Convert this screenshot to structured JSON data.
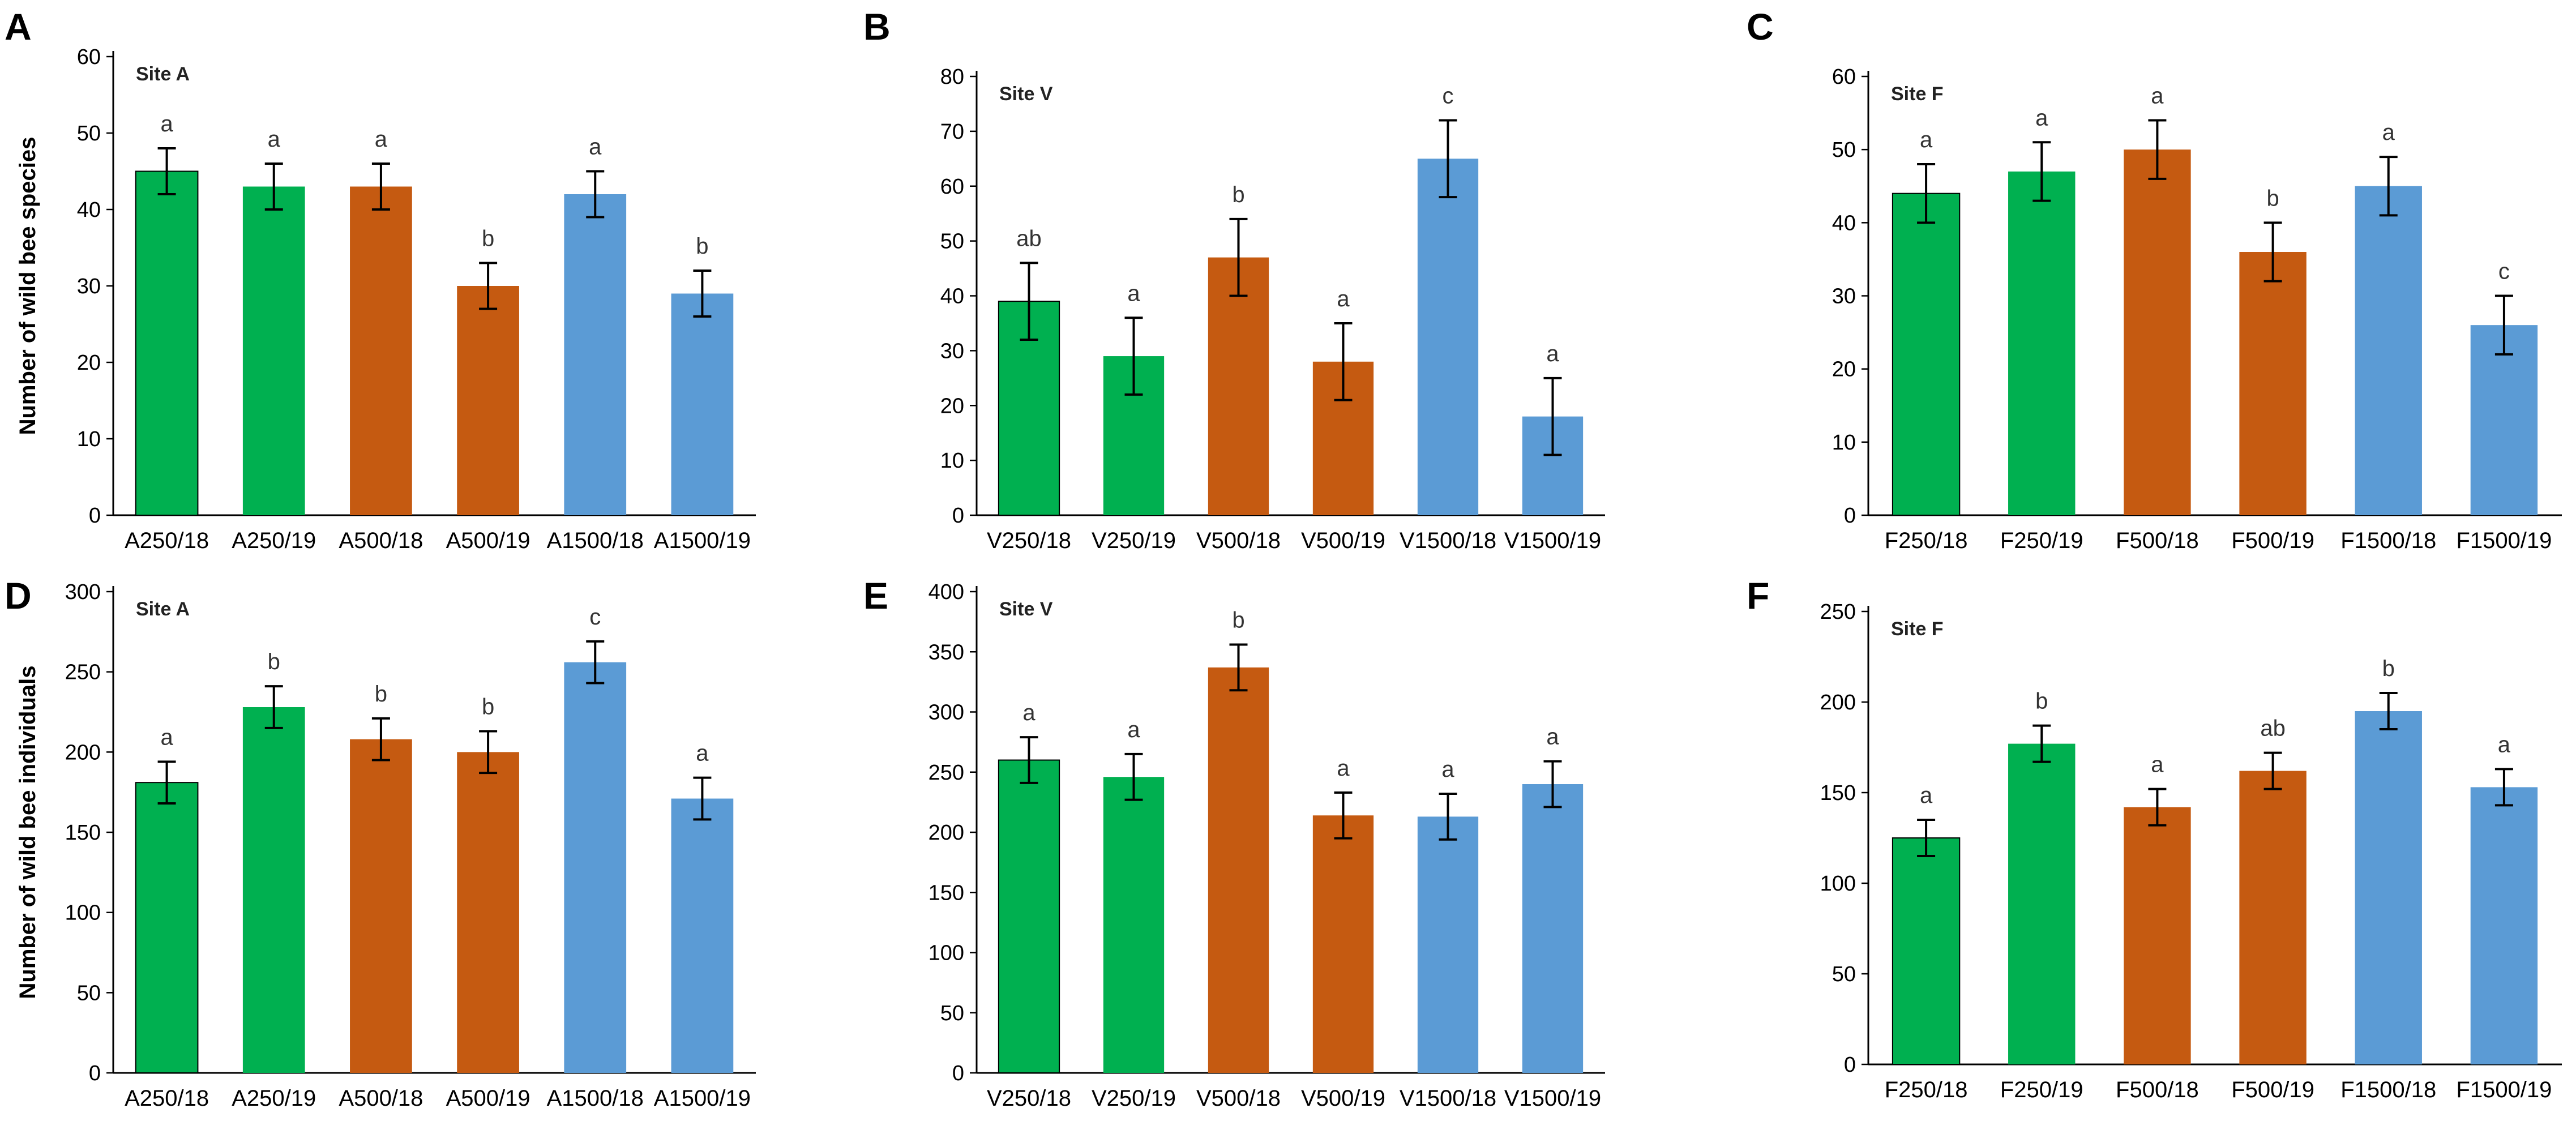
{
  "figure": {
    "colors": {
      "green": "#00b050",
      "orange": "#c55a11",
      "blue": "#5b9bd5",
      "axis": "#000000"
    },
    "y_labels": [
      "Number of wild bee species",
      "Number of wild bee individuals"
    ]
  },
  "chart_data": [
    {
      "panel": "A",
      "title": "Site A",
      "type": "bar",
      "row": 0,
      "categories": [
        "A250/18",
        "A250/19",
        "A500/18",
        "A500/19",
        "A1500/18",
        "A1500/19"
      ],
      "values": [
        45,
        43,
        43,
        30,
        42,
        29
      ],
      "errors": [
        3,
        3,
        3,
        3,
        3,
        3
      ],
      "letters": [
        "a",
        "a",
        "a",
        "b",
        "a",
        "b"
      ],
      "ylim": [
        0,
        60
      ],
      "yticks": [
        0,
        10,
        20,
        30,
        40,
        50,
        60
      ],
      "colors": [
        "green",
        "green",
        "orange",
        "orange",
        "blue",
        "blue"
      ],
      "ylabel": "Number of wild bee species"
    },
    {
      "panel": "B",
      "title": "Site V",
      "type": "bar",
      "row": 0,
      "categories": [
        "V250/18",
        "V250/19",
        "V500/18",
        "V500/19",
        "V1500/18",
        "V1500/19"
      ],
      "values": [
        39,
        29,
        47,
        28,
        65,
        18
      ],
      "errors": [
        7,
        7,
        7,
        7,
        7,
        7
      ],
      "letters": [
        "ab",
        "a",
        "b",
        "a",
        "c",
        "a"
      ],
      "ylim": [
        0,
        80
      ],
      "yticks": [
        0,
        10,
        20,
        30,
        40,
        50,
        60,
        70,
        80
      ],
      "colors": [
        "green",
        "green",
        "orange",
        "orange",
        "blue",
        "blue"
      ],
      "ylabel": ""
    },
    {
      "panel": "C",
      "title": "Site F",
      "type": "bar",
      "row": 0,
      "categories": [
        "F250/18",
        "F250/19",
        "F500/18",
        "F500/19",
        "F1500/18",
        "F1500/19"
      ],
      "values": [
        44,
        47,
        50,
        36,
        45,
        26
      ],
      "errors": [
        4,
        4,
        4,
        4,
        4,
        4
      ],
      "letters": [
        "a",
        "a",
        "a",
        "b",
        "a",
        "c"
      ],
      "ylim": [
        0,
        60
      ],
      "yticks": [
        0,
        10,
        20,
        30,
        40,
        50,
        60
      ],
      "colors": [
        "green",
        "green",
        "orange",
        "orange",
        "blue",
        "blue"
      ],
      "ylabel": ""
    },
    {
      "panel": "D",
      "title": "Site A",
      "type": "bar",
      "row": 1,
      "categories": [
        "A250/18",
        "A250/19",
        "A500/18",
        "A500/19",
        "A1500/18",
        "A1500/19"
      ],
      "values": [
        181,
        228,
        208,
        200,
        256,
        171
      ],
      "errors": [
        13,
        13,
        13,
        13,
        13,
        13
      ],
      "letters": [
        "a",
        "b",
        "b",
        "b",
        "c",
        "a"
      ],
      "ylim": [
        0,
        300
      ],
      "yticks": [
        0,
        50,
        100,
        150,
        200,
        250,
        300
      ],
      "colors": [
        "green",
        "green",
        "orange",
        "orange",
        "blue",
        "blue"
      ],
      "ylabel": "Number of wild bee individuals"
    },
    {
      "panel": "E",
      "title": "Site V",
      "type": "bar",
      "row": 1,
      "categories": [
        "V250/18",
        "V250/19",
        "V500/18",
        "V500/19",
        "V1500/18",
        "V1500/19"
      ],
      "values": [
        260,
        246,
        337,
        214,
        213,
        240
      ],
      "errors": [
        19,
        19,
        19,
        19,
        19,
        19
      ],
      "letters": [
        "a",
        "a",
        "b",
        "a",
        "a",
        "a"
      ],
      "ylim": [
        0,
        400
      ],
      "yticks": [
        0,
        50,
        100,
        150,
        200,
        250,
        300,
        350,
        400
      ],
      "colors": [
        "green",
        "green",
        "orange",
        "orange",
        "blue",
        "blue"
      ],
      "ylabel": ""
    },
    {
      "panel": "F",
      "title": "Site F",
      "type": "bar",
      "row": 1,
      "categories": [
        "F250/18",
        "F250/19",
        "F500/18",
        "F500/19",
        "F1500/18",
        "F1500/19"
      ],
      "values": [
        125,
        177,
        142,
        162,
        195,
        153
      ],
      "errors": [
        10,
        10,
        10,
        10,
        10,
        10
      ],
      "letters": [
        "a",
        "b",
        "a",
        "ab",
        "b",
        "a"
      ],
      "ylim": [
        0,
        250
      ],
      "yticks": [
        0,
        50,
        100,
        150,
        200,
        250
      ],
      "colors": [
        "green",
        "green",
        "orange",
        "orange",
        "blue",
        "blue"
      ],
      "ylabel": ""
    }
  ]
}
